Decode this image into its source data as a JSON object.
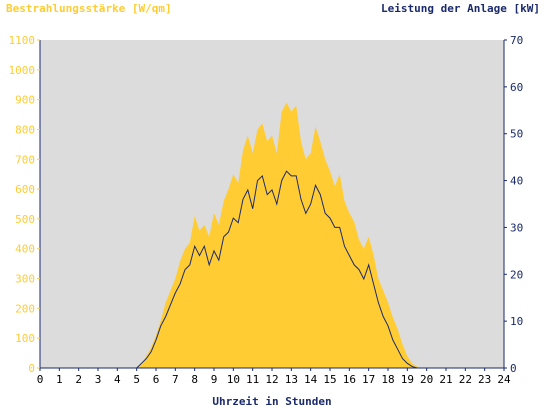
{
  "colors": {
    "irradiance": "#ffcc33",
    "power": "#1a2a6c",
    "plot_bg": "#dcdcdc",
    "axis": "#1a2a6c"
  },
  "chart_data": {
    "type": "area",
    "left_axis_label": "Bestrahlungsstärke [W/qm]",
    "right_axis_label": "Leistung der Anlage [kW]",
    "xlabel": "Uhrzeit in Stunden",
    "xlim": [
      0,
      24
    ],
    "ylim_left": [
      0,
      1100
    ],
    "ylim_right": [
      0,
      70
    ],
    "x_ticks": [
      "0",
      "1",
      "2",
      "3",
      "4",
      "5",
      "6",
      "7",
      "8",
      "9",
      "10",
      "11",
      "12",
      "13",
      "14",
      "15",
      "16",
      "17",
      "18",
      "19",
      "20",
      "21",
      "22",
      "23",
      "24"
    ],
    "left_ticks": [
      "0",
      "100",
      "200",
      "300",
      "400",
      "500",
      "600",
      "700",
      "800",
      "900",
      "1000",
      "1100"
    ],
    "right_ticks": [
      "0",
      "10",
      "20",
      "30",
      "40",
      "50",
      "60",
      "70"
    ],
    "grid": false,
    "series": [
      {
        "name": "Bestrahlungsstärke [W/qm]",
        "axis": "left",
        "x": [
          0,
          5,
          5.25,
          5.5,
          5.75,
          6,
          6.25,
          6.5,
          6.75,
          7,
          7.25,
          7.5,
          7.75,
          8,
          8.25,
          8.5,
          8.75,
          9,
          9.25,
          9.5,
          9.75,
          10,
          10.25,
          10.5,
          10.75,
          11,
          11.25,
          11.5,
          11.75,
          12,
          12.25,
          12.5,
          12.75,
          13,
          13.25,
          13.5,
          13.75,
          14,
          14.25,
          14.5,
          14.75,
          15,
          15.25,
          15.5,
          15.75,
          16,
          16.25,
          16.5,
          16.75,
          17,
          17.25,
          17.5,
          17.75,
          18,
          18.25,
          18.5,
          18.75,
          19,
          19.25,
          19.5,
          19.75,
          20,
          24
        ],
        "y": [
          0,
          0,
          15,
          40,
          70,
          110,
          160,
          220,
          260,
          300,
          360,
          400,
          420,
          510,
          460,
          480,
          440,
          520,
          480,
          560,
          600,
          650,
          620,
          730,
          780,
          720,
          800,
          820,
          760,
          780,
          720,
          860,
          890,
          860,
          880,
          760,
          700,
          720,
          810,
          760,
          700,
          660,
          610,
          650,
          560,
          520,
          490,
          430,
          400,
          440,
          380,
          300,
          260,
          220,
          170,
          130,
          80,
          40,
          15,
          5,
          0,
          0,
          0
        ]
      },
      {
        "name": "Leistung der Anlage [kW]",
        "axis": "right",
        "x": [
          0,
          5,
          5.25,
          5.5,
          5.75,
          6,
          6.25,
          6.5,
          6.75,
          7,
          7.25,
          7.5,
          7.75,
          8,
          8.25,
          8.5,
          8.75,
          9,
          9.25,
          9.5,
          9.75,
          10,
          10.25,
          10.5,
          10.75,
          11,
          11.25,
          11.5,
          11.75,
          12,
          12.25,
          12.5,
          12.75,
          13,
          13.25,
          13.5,
          13.75,
          14,
          14.25,
          14.5,
          14.75,
          15,
          15.25,
          15.5,
          15.75,
          16,
          16.25,
          16.5,
          16.75,
          17,
          17.25,
          17.5,
          17.75,
          18,
          18.25,
          18.5,
          18.75,
          19,
          19.25,
          19.5,
          19.75,
          20,
          24
        ],
        "y": [
          0,
          0,
          1,
          2,
          3.5,
          6,
          9,
          11,
          13.5,
          16,
          18,
          21,
          22,
          26,
          24,
          26,
          22,
          25,
          23,
          28,
          29,
          32,
          31,
          36,
          38,
          34,
          40,
          41,
          37,
          38,
          35,
          40,
          42,
          41,
          41,
          36,
          33,
          35,
          39,
          37,
          33,
          32,
          30,
          30,
          26,
          24,
          22,
          21,
          19,
          22,
          18,
          14,
          11,
          9,
          6,
          4,
          2,
          1,
          0.3,
          0,
          0,
          0,
          0
        ]
      }
    ]
  }
}
